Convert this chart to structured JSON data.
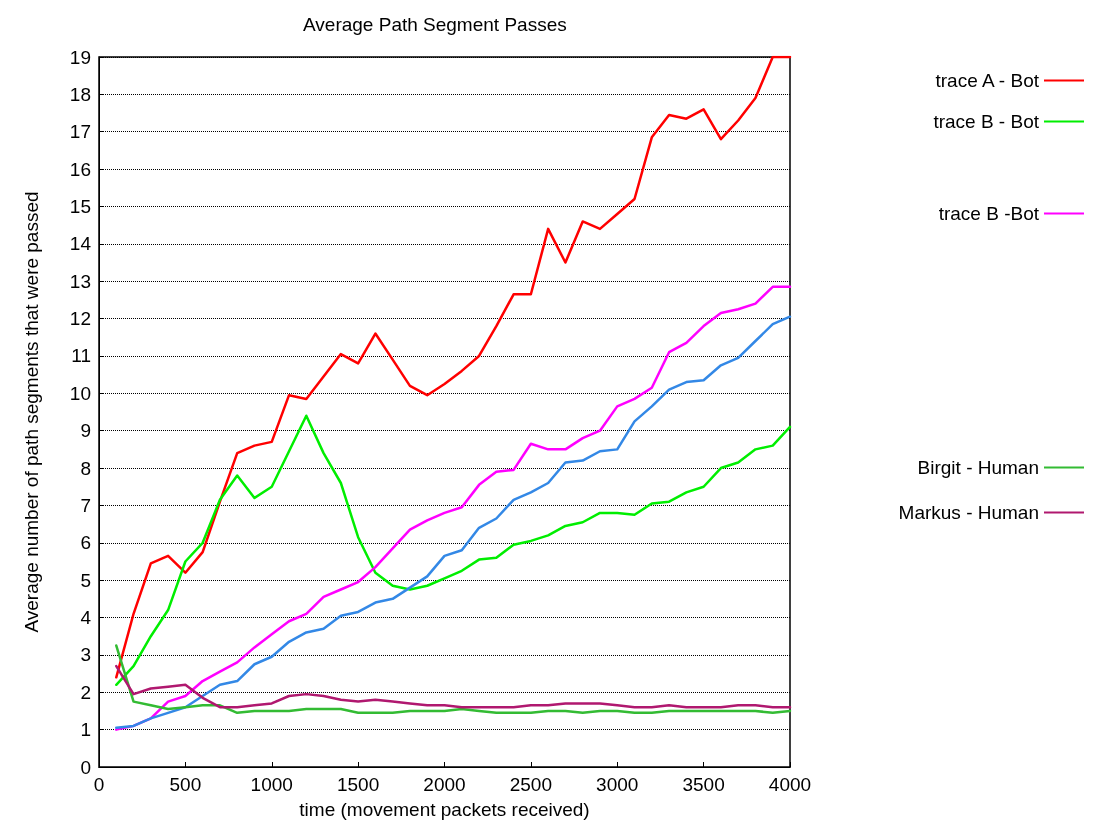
{
  "chart_data": {
    "type": "line",
    "title": "Average Path Segment Passes",
    "xlabel": "time (movement packets received)",
    "ylabel": "Average number of path segments that were passed",
    "x": [
      100,
      200,
      300,
      400,
      500,
      600,
      700,
      800,
      900,
      1000,
      1100,
      1200,
      1300,
      1400,
      1500,
      1600,
      1700,
      1800,
      1900,
      2000,
      2100,
      2200,
      2300,
      2400,
      2500,
      2600,
      2700,
      2800,
      2900,
      3000,
      3100,
      3200,
      3300,
      3400,
      3500,
      3600,
      3700,
      3800,
      3900,
      4000
    ],
    "xlim": [
      0,
      4000
    ],
    "xticks": [
      0,
      500,
      1000,
      1500,
      2000,
      2500,
      3000,
      3500,
      4000
    ],
    "ylim": [
      0,
      19
    ],
    "yticks": [
      0,
      1,
      2,
      3,
      4,
      5,
      6,
      7,
      8,
      9,
      10,
      11,
      12,
      13,
      14,
      15,
      16,
      17,
      18,
      19
    ],
    "grid": "y",
    "legend": "right",
    "marker": "none",
    "line_style": "solid",
    "series": [
      {
        "name": "trace A - Bot",
        "color": "#ff0000",
        "values": [
          2.4,
          4.1,
          5.45,
          5.65,
          5.2,
          5.75,
          7.1,
          8.4,
          8.6,
          8.7,
          9.95,
          9.85,
          10.45,
          11.05,
          10.8,
          11.6,
          10.9,
          10.2,
          9.95,
          10.25,
          10.6,
          11.0,
          11.8,
          12.65,
          12.65,
          14.4,
          13.5,
          14.6,
          14.4,
          14.8,
          15.2,
          16.85,
          17.45,
          17.35,
          17.6,
          16.8,
          17.3,
          17.9,
          19,
          19
        ]
      },
      {
        "name": "trace B - Bot",
        "color": "#00ee00",
        "values": [
          2.2,
          2.7,
          3.5,
          4.2,
          5.5,
          6.0,
          7.15,
          7.8,
          7.2,
          7.5,
          8.45,
          9.4,
          8.4,
          7.6,
          6.15,
          5.2,
          4.85,
          4.75,
          4.85,
          5.05,
          5.25,
          5.55,
          5.6,
          5.95,
          6.05,
          6.2,
          6.45,
          6.55,
          6.8,
          6.8,
          6.75,
          7.05,
          7.1,
          7.35,
          7.5,
          8.0,
          8.15,
          8.5,
          8.6,
          9.1
        ]
      },
      {
        "name": "trace B -Bot",
        "color": "#ff00ff",
        "values": [
          1.0,
          1.1,
          1.3,
          1.75,
          1.9,
          2.3,
          2.55,
          2.8,
          3.2,
          3.55,
          3.9,
          4.1,
          4.55,
          4.75,
          4.95,
          5.35,
          5.85,
          6.35,
          6.6,
          6.8,
          6.95,
          7.55,
          7.9,
          7.95,
          8.65,
          8.5,
          8.5,
          8.8,
          9.0,
          9.65,
          9.85,
          10.15,
          11.1,
          11.35,
          11.8,
          12.15,
          12.25,
          12.4,
          12.85,
          12.85
        ]
      },
      {
        "color": "#3388e6",
        "values": [
          1.05,
          1.1,
          1.3,
          1.45,
          1.6,
          1.9,
          2.2,
          2.3,
          2.75,
          2.95,
          3.35,
          3.6,
          3.7,
          4.05,
          4.15,
          4.4,
          4.5,
          4.8,
          5.1,
          5.65,
          5.8,
          6.4,
          6.65,
          7.15,
          7.35,
          7.6,
          8.15,
          8.2,
          8.45,
          8.5,
          9.25,
          9.65,
          10.1,
          10.3,
          10.35,
          10.75,
          10.95,
          11.4,
          11.85,
          12.05
        ]
      },
      {
        "name": "Birgit - Human",
        "color": "#33bb33",
        "values": [
          3.25,
          1.75,
          1.65,
          1.55,
          1.6,
          1.65,
          1.65,
          1.45,
          1.5,
          1.5,
          1.5,
          1.55,
          1.55,
          1.55,
          1.45,
          1.45,
          1.45,
          1.5,
          1.5,
          1.5,
          1.55,
          1.5,
          1.45,
          1.45,
          1.45,
          1.5,
          1.5,
          1.45,
          1.5,
          1.5,
          1.45,
          1.45,
          1.5,
          1.5,
          1.5,
          1.5,
          1.5,
          1.5,
          1.45,
          1.5
        ]
      },
      {
        "name": "Markus - Human",
        "color": "#b0186f",
        "values": [
          2.7,
          1.95,
          2.1,
          2.15,
          2.2,
          1.85,
          1.6,
          1.6,
          1.65,
          1.7,
          1.9,
          1.95,
          1.9,
          1.8,
          1.75,
          1.8,
          1.75,
          1.7,
          1.65,
          1.65,
          1.6,
          1.6,
          1.6,
          1.6,
          1.65,
          1.65,
          1.7,
          1.7,
          1.7,
          1.65,
          1.6,
          1.6,
          1.65,
          1.6,
          1.6,
          1.6,
          1.65,
          1.65,
          1.6,
          1.6
        ]
      }
    ]
  }
}
